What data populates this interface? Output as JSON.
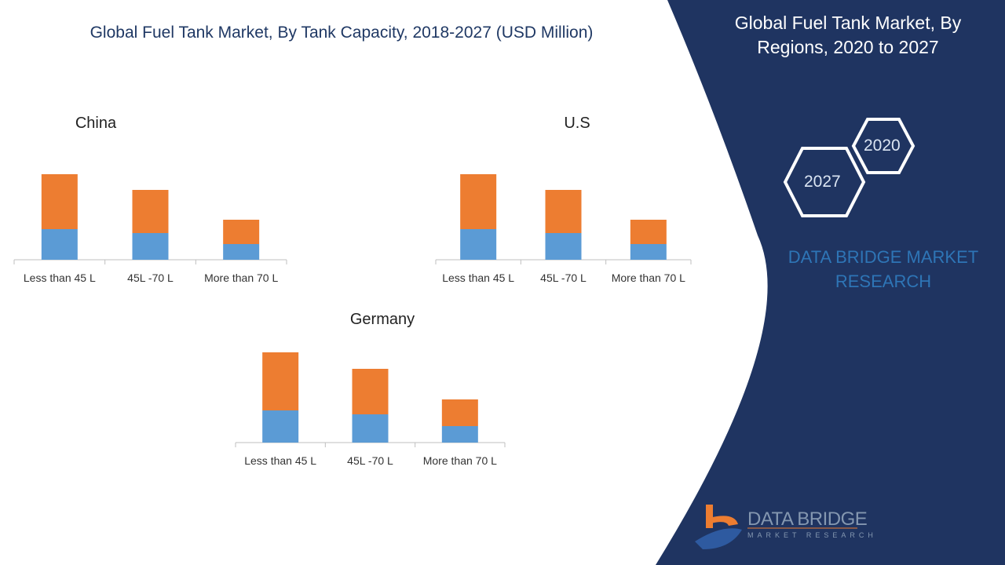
{
  "header": {
    "title": "Global Fuel Tank Market, By Tank Capacity, 2018-2027 (USD Million)"
  },
  "side_panel": {
    "title": "Global Fuel Tank Market, By Regions, 2020 to 2027",
    "hex_labels": [
      "2020",
      "2027"
    ],
    "brand": "DATA BRIDGE MARKET RESEARCH",
    "logo": {
      "name": "DATA BRIDGE",
      "sub": "MARKET RESEARCH"
    },
    "colors": {
      "panel": "#1f3461",
      "accent": "#2e75b6"
    }
  },
  "watermark": "DATA BRIDGE MARKET RESEARCH",
  "chart_data": [
    {
      "type": "bar",
      "stacked": true,
      "title": "China",
      "categories": [
        "Less than 45 L",
        "45L -70 L",
        "More than 70 L"
      ],
      "series": [
        {
          "values": [
            39,
            34,
            20
          ],
          "color": "#5b9bd5"
        },
        {
          "values": [
            70,
            55,
            31
          ],
          "color": "#ed7d31"
        }
      ],
      "grid": false
    },
    {
      "type": "bar",
      "stacked": true,
      "title": "U.S",
      "categories": [
        "Less than 45 L",
        "45L -70 L",
        "More than 70 L"
      ],
      "series": [
        {
          "values": [
            39,
            34,
            20
          ],
          "color": "#5b9bd5"
        },
        {
          "values": [
            70,
            55,
            31
          ],
          "color": "#ed7d31"
        }
      ],
      "grid": false
    },
    {
      "type": "bar",
      "stacked": true,
      "title": "Germany",
      "categories": [
        "Less than 45 L",
        "45L -70 L",
        "More than 70 L"
      ],
      "series": [
        {
          "values": [
            41,
            36,
            21
          ],
          "color": "#5b9bd5"
        },
        {
          "values": [
            74,
            58,
            34
          ],
          "color": "#ed7d31"
        }
      ],
      "grid": false
    }
  ]
}
